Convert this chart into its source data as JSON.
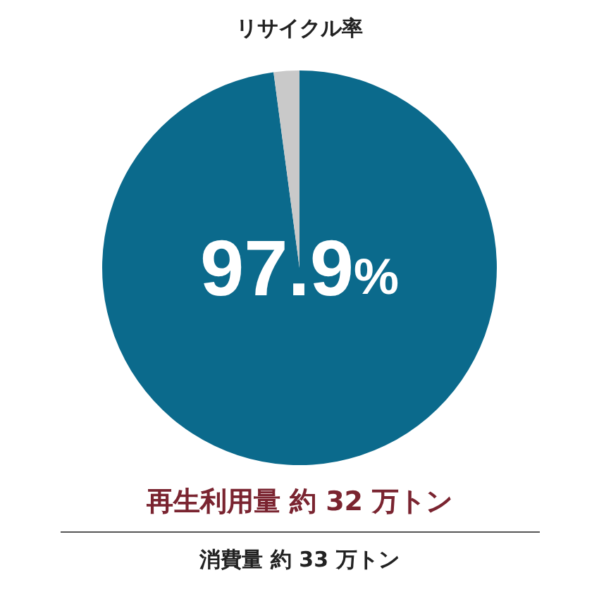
{
  "chart_data": {
    "type": "pie",
    "title": "リサイクル率",
    "categories": [
      null,
      null
    ],
    "values": [
      97.9,
      2.1
    ],
    "colors": [
      "#0b6a8c",
      "#c9c9c9"
    ],
    "value_labels": [
      "97.9%",
      null
    ],
    "annotations": [
      "再生利用量 約 32 万トン",
      "消費量 約 33 万トン"
    ]
  }
}
